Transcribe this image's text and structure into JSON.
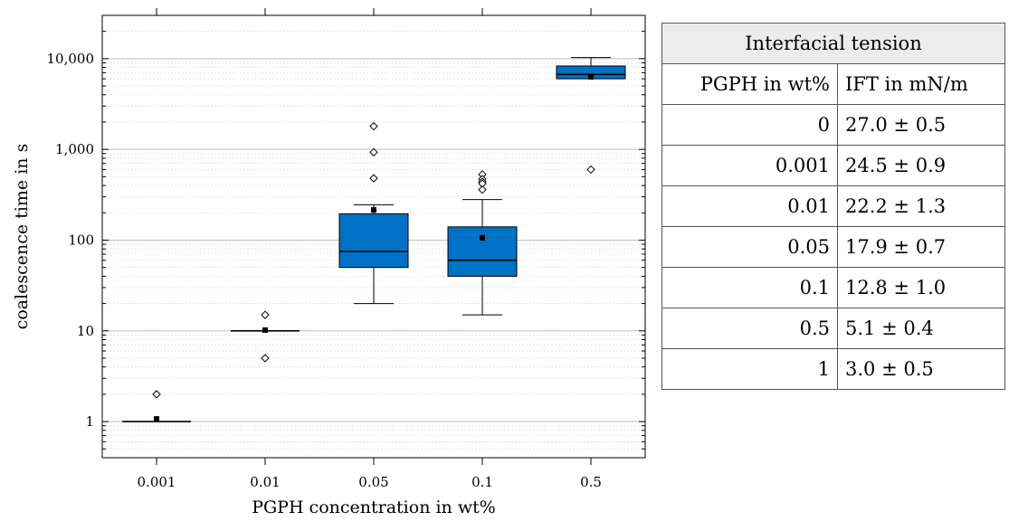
{
  "chart_data": {
    "type": "box",
    "xlabel": "PGPH concentration in wt%",
    "ylabel": "coalescence time in s",
    "yscale": "log",
    "ylim": [
      0.4,
      30000
    ],
    "yticks": [
      1,
      10,
      100,
      1000,
      10000
    ],
    "ytick_labels": [
      "1",
      "10",
      "100",
      "1,000",
      "10,000"
    ],
    "categories": [
      "0.001",
      "0.01",
      "0.05",
      "0.1",
      "0.5"
    ],
    "grid": true,
    "box_color": "#0072c6",
    "boxes": [
      {
        "category": "0.001",
        "whisker_low": 1,
        "q1": 1,
        "median": 1,
        "q3": 1,
        "whisker_high": 1,
        "mean": 1.07,
        "outliers": [
          2
        ]
      },
      {
        "category": "0.01",
        "whisker_low": 10,
        "q1": 10,
        "median": 10,
        "q3": 10,
        "whisker_high": 10,
        "mean": 10.2,
        "outliers": [
          15,
          5
        ]
      },
      {
        "category": "0.05",
        "whisker_low": 20,
        "q1": 50,
        "median": 75,
        "q3": 195,
        "whisker_high": 245,
        "mean": 215,
        "outliers": [
          1800,
          930,
          480
        ]
      },
      {
        "category": "0.1",
        "whisker_low": 15,
        "q1": 40,
        "median": 60,
        "q3": 140,
        "whisker_high": 280,
        "mean": 106,
        "outliers": [
          530,
          470,
          440,
          420,
          360
        ]
      },
      {
        "category": "0.5",
        "whisker_low": 6000,
        "q1": 6000,
        "median": 6700,
        "q3": 8300,
        "whisker_high": 10300,
        "mean": 6300,
        "outliers": [
          600
        ]
      }
    ]
  },
  "table": {
    "title": "Interfacial tension",
    "headers": [
      "PGPH in wt%",
      "IFT in mN/m"
    ],
    "rows": [
      [
        "0",
        "27.0 ± 0.5"
      ],
      [
        "0.001",
        "24.5 ± 0.9"
      ],
      [
        "0.01",
        "22.2 ± 1.3"
      ],
      [
        "0.05",
        "17.9 ± 0.7"
      ],
      [
        "0.1",
        "12.8 ± 1.0"
      ],
      [
        "0.5",
        "5.1 ± 0.4"
      ],
      [
        "1",
        "3.0 ± 0.5"
      ]
    ]
  }
}
